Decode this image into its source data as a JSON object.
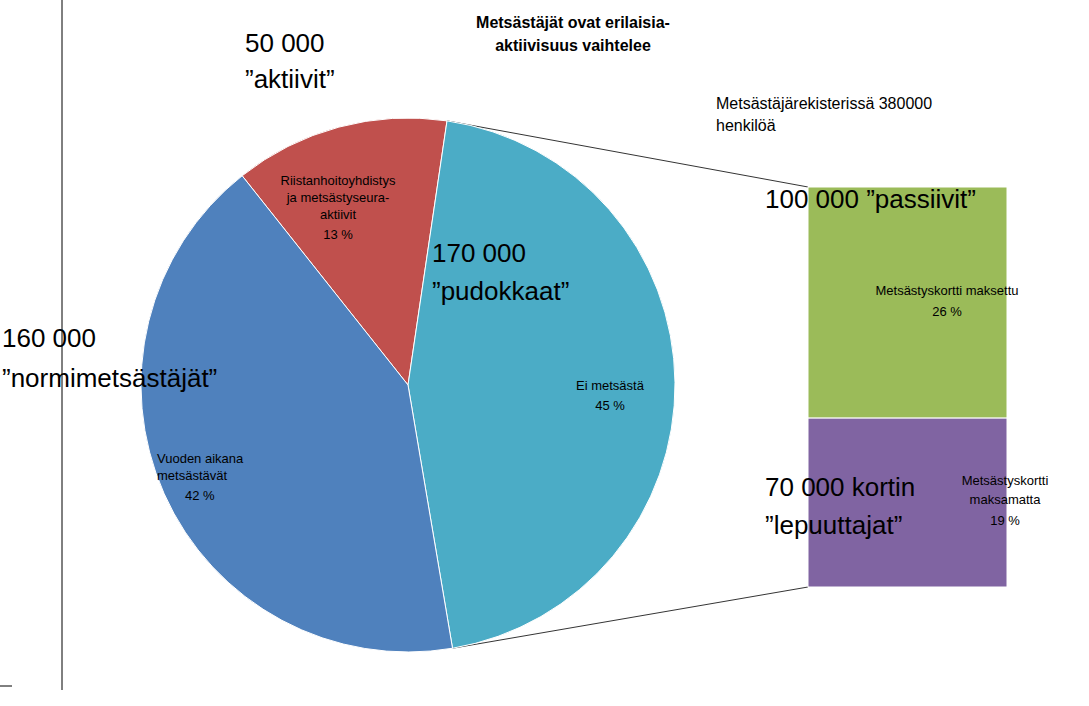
{
  "chart_data": {
    "type": "pie",
    "title": [
      "Metsästäjät ovat erilaisia-",
      "aktiivisuus vaihtelee"
    ],
    "subtitle": [
      "Metsästäjärekisterissä 380000",
      "henkilöä"
    ],
    "data_labels": true,
    "slices": [
      {
        "label_lines": [
          "Riistanhoitoyhdistys",
          "ja metsästyseura-",
          "aktiivit"
        ],
        "value": 13,
        "value_label": "13 %",
        "color": "#c0504d",
        "group_label": [
          "50 000",
          "”aktiivit”"
        ]
      },
      {
        "label_lines": [
          "Ei metsästä"
        ],
        "value": 45,
        "value_label": "45 %",
        "color": "#4bacc6",
        "group_label": [
          "170 000",
          "”pudokkaat”"
        ],
        "breakdown": {
          "type": "bar",
          "stacked": true,
          "categories": [
            [
              "Metsästyskortti maksettu"
            ],
            [
              "Metsästyskortti",
              "maksamatta"
            ]
          ],
          "values": [
            26,
            19
          ],
          "value_labels": [
            "26 %",
            "19 %"
          ],
          "colors": [
            "#9bbb59",
            "#8064a2"
          ],
          "group_labels": [
            [
              "100 000 ”passiivit”"
            ],
            [
              "70 000 kortin",
              "”lepuuttajat”"
            ]
          ]
        }
      },
      {
        "label_lines": [
          "Vuoden aikana",
          "metsästävät"
        ],
        "value": 42,
        "value_label": "42 %",
        "color": "#4f81bd",
        "group_label": [
          "160 000",
          "”normimetsästäjät”"
        ]
      }
    ]
  }
}
